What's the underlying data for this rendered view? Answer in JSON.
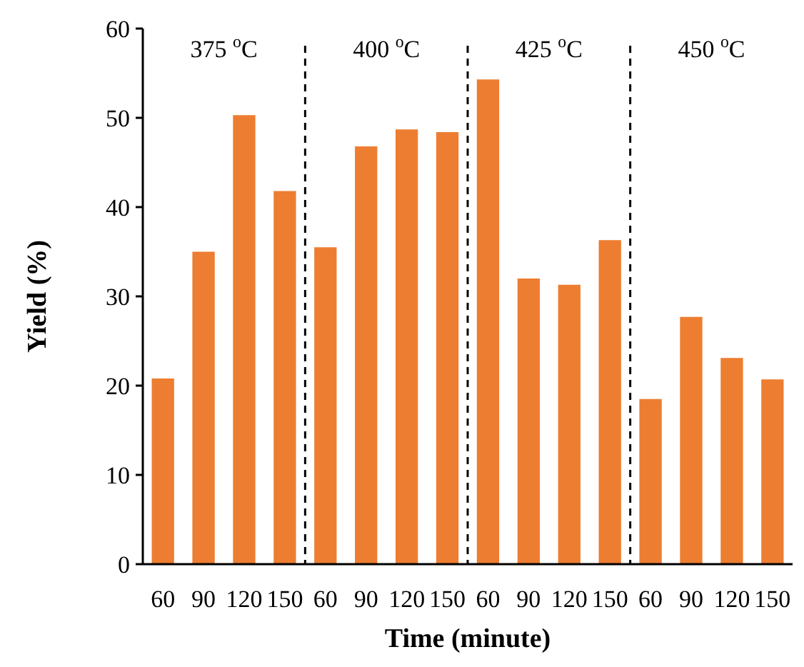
{
  "chart_data": {
    "type": "bar",
    "xlabel": "Time (minute)",
    "ylabel": "Yield (%)",
    "categories": [
      "60",
      "90",
      "120",
      "150",
      "60",
      "90",
      "120",
      "150",
      "60",
      "90",
      "120",
      "150",
      "60",
      "90",
      "120",
      "150"
    ],
    "values": [
      20.8,
      35.0,
      50.3,
      41.8,
      35.5,
      46.8,
      48.7,
      48.4,
      54.3,
      32.0,
      31.3,
      36.3,
      18.5,
      27.7,
      23.1,
      20.7
    ],
    "color": "#ed7d31",
    "ylim": [
      0,
      60
    ],
    "yticks": [
      0,
      10,
      20,
      30,
      40,
      50,
      60
    ],
    "grid": false,
    "annotations": [
      "375 $^{o}$C",
      "400 $^{o}$C",
      "425 $^{o}$C",
      "450 $^{o}$C"
    ]
  }
}
